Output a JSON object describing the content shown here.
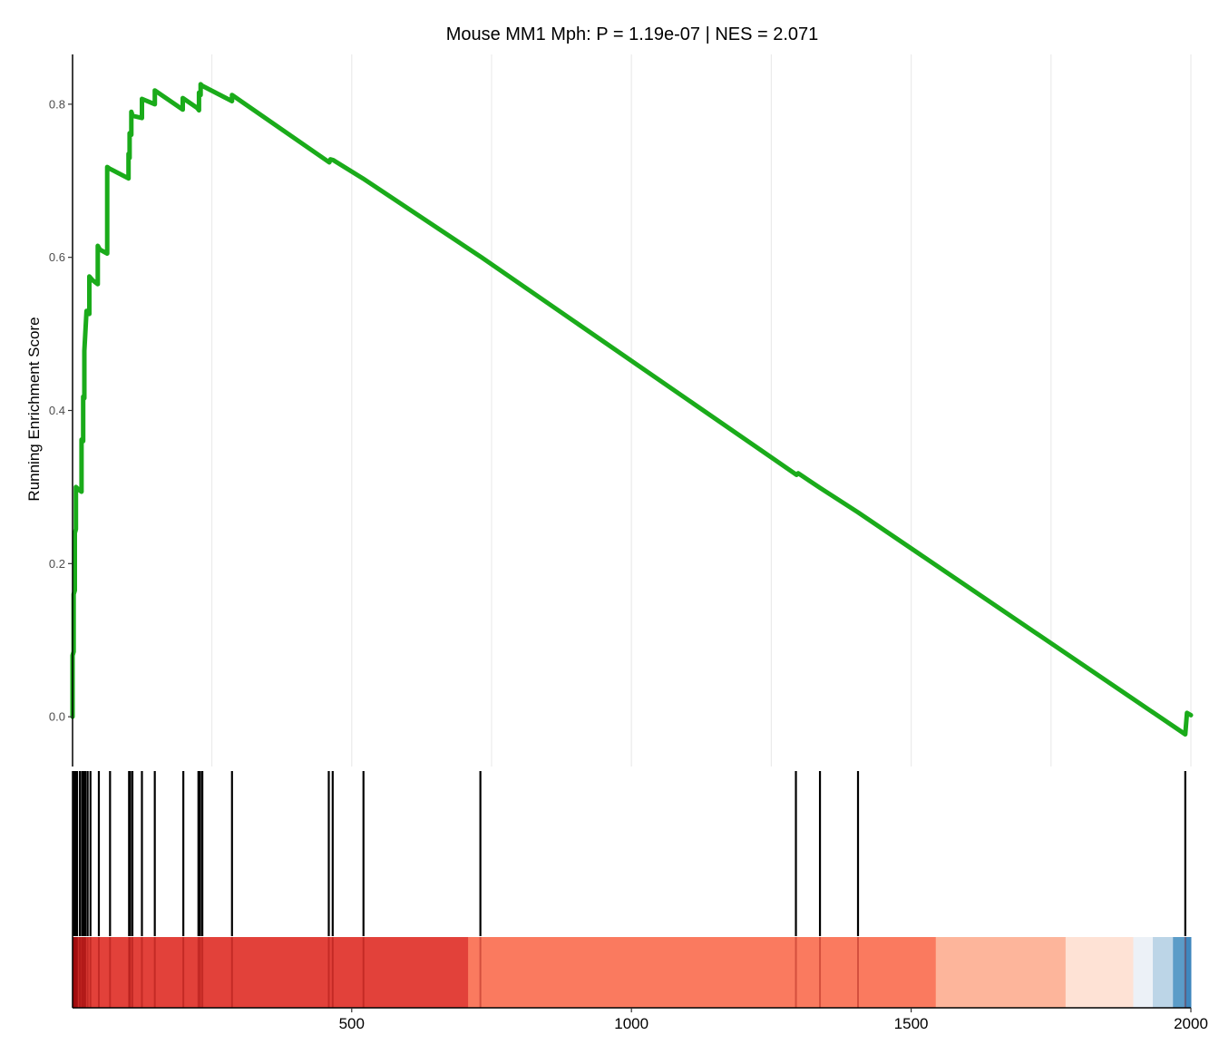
{
  "chart_data": {
    "type": "line",
    "title": "Mouse MM1 Mph: P = 1.19e-07 | NES = 2.071",
    "xlabel": "",
    "ylabel": "Running Enrichment Score",
    "xlim": [
      1,
      2000
    ],
    "ylim": [
      -0.065,
      0.865
    ],
    "x_ticks": [
      500,
      1000,
      1500,
      2000
    ],
    "y_ticks": [
      0.0,
      0.2,
      0.4,
      0.6,
      0.8
    ],
    "y_tick_labels": [
      "0.0",
      "0.2",
      "0.4",
      "0.6",
      "0.8"
    ],
    "grid": "vertical major and minor lines",
    "series": [
      {
        "color": "#1aab1a",
        "x": [
          1,
          1,
          3,
          3,
          5,
          5,
          7,
          7,
          10,
          13,
          17,
          17,
          20,
          20,
          22,
          22,
          26,
          31,
          31,
          37,
          46,
          46,
          50,
          63,
          63,
          67,
          101,
          101,
          103,
          103,
          106,
          106,
          107,
          107,
          125,
          125,
          148,
          148,
          198,
          198,
          224,
          227,
          227,
          230,
          230,
          233,
          286,
          286,
          460,
          462,
          467,
          520,
          732,
          1295,
          1298,
          1337,
          1405,
          1990,
          1993,
          2000
        ],
        "y": [
          0.0,
          0.08,
          0.085,
          0.16,
          0.165,
          0.24,
          0.245,
          0.3,
          0.298,
          0.296,
          0.294,
          0.362,
          0.36,
          0.418,
          0.416,
          0.478,
          0.53,
          0.526,
          0.575,
          0.57,
          0.565,
          0.615,
          0.61,
          0.605,
          0.718,
          0.716,
          0.703,
          0.735,
          0.73,
          0.762,
          0.76,
          0.79,
          0.788,
          0.785,
          0.782,
          0.807,
          0.8,
          0.818,
          0.793,
          0.808,
          0.795,
          0.792,
          0.815,
          0.812,
          0.826,
          0.824,
          0.804,
          0.812,
          0.724,
          0.728,
          0.727,
          0.703,
          0.6,
          0.316,
          0.318,
          0.299,
          0.267,
          -0.023,
          0.005,
          0.002
        ]
      }
    ],
    "hits": [
      2,
      4,
      6,
      9,
      14,
      18,
      21,
      24,
      28,
      33,
      48,
      68,
      102,
      104,
      108,
      125,
      148,
      199,
      226,
      229,
      233,
      286,
      459,
      466,
      521,
      730,
      1294,
      1337,
      1405,
      1990
    ],
    "color_bar": {
      "boundaries": [
        1,
        10,
        25,
        708,
        1544,
        1776,
        1897,
        1932,
        1968,
        1990,
        2000
      ],
      "colors": [
        "#b2181b",
        "#c92a27",
        "#e2413a",
        "#fa7a5f",
        "#fdb59b",
        "#fee2d5",
        "#ecf1f7",
        "#bcd5e7",
        "#5b9cc8",
        "#3f87be"
      ]
    }
  }
}
